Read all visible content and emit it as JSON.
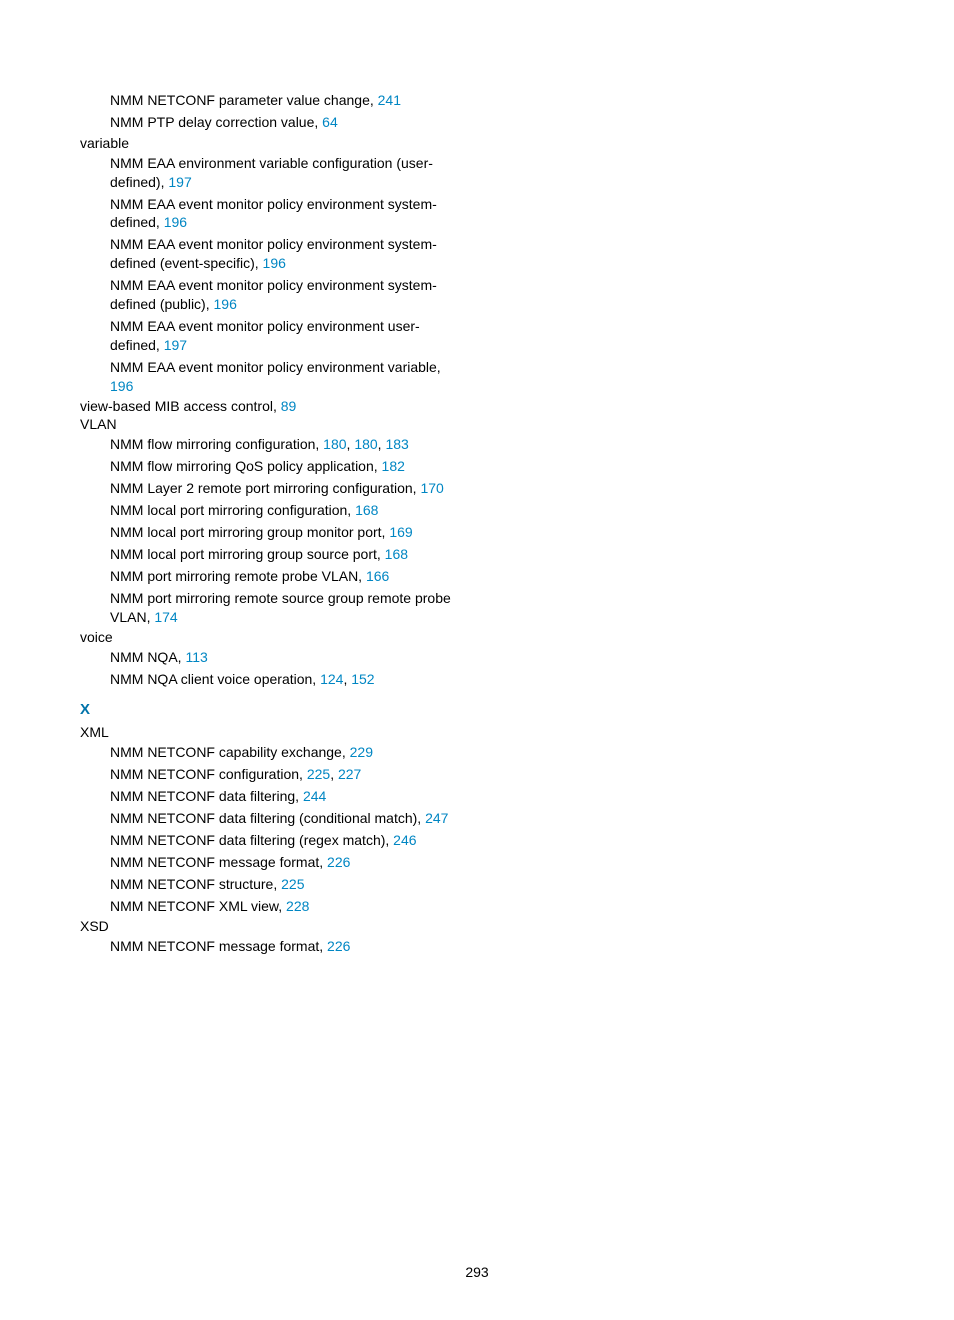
{
  "colors": {
    "text": "#000000",
    "link": "#0086c3",
    "letter": "#0073aa",
    "background": "#ffffff"
  },
  "typography": {
    "body_fontsize_pt": 10,
    "letter_fontsize_pt": 11,
    "font_family": "Arial"
  },
  "page_number": "293",
  "entries": [
    {
      "type": "sub",
      "text": "NMM NETCONF parameter value change, ",
      "pages": [
        "241"
      ]
    },
    {
      "type": "sub",
      "text": "NMM PTP delay correction value, ",
      "pages": [
        "64"
      ]
    },
    {
      "type": "heading",
      "text": "variable"
    },
    {
      "type": "sub",
      "text": "NMM EAA environment variable configuration (user-defined), ",
      "pages": [
        "197"
      ]
    },
    {
      "type": "sub",
      "text": "NMM EAA event monitor policy environment system-defined, ",
      "pages": [
        "196"
      ]
    },
    {
      "type": "sub",
      "text": "NMM EAA event monitor policy environment system-defined (event-specific), ",
      "pages": [
        "196"
      ]
    },
    {
      "type": "sub",
      "text": "NMM EAA event monitor policy environment system-defined (public), ",
      "pages": [
        "196"
      ]
    },
    {
      "type": "sub",
      "text": "NMM EAA event monitor policy environment user-defined, ",
      "pages": [
        "197"
      ]
    },
    {
      "type": "sub",
      "text": "NMM EAA event monitor policy environment variable, ",
      "pages": [
        "196"
      ]
    },
    {
      "type": "heading-inline",
      "text": "view-based MIB access control, ",
      "pages": [
        "89"
      ]
    },
    {
      "type": "heading",
      "text": "VLAN"
    },
    {
      "type": "sub",
      "text": "NMM flow mirroring configuration, ",
      "pages": [
        "180",
        "180",
        "183"
      ]
    },
    {
      "type": "sub",
      "text": "NMM flow mirroring QoS policy application, ",
      "pages": [
        "182"
      ]
    },
    {
      "type": "sub",
      "text": "NMM Layer 2 remote port mirroring configuration, ",
      "pages": [
        "170"
      ]
    },
    {
      "type": "sub",
      "text": "NMM local port mirroring configuration, ",
      "pages": [
        "168"
      ]
    },
    {
      "type": "sub",
      "text": "NMM local port mirroring group monitor port, ",
      "pages": [
        "169"
      ]
    },
    {
      "type": "sub",
      "text": "NMM local port mirroring group source port, ",
      "pages": [
        "168"
      ]
    },
    {
      "type": "sub",
      "text": "NMM port mirroring remote probe VLAN, ",
      "pages": [
        "166"
      ]
    },
    {
      "type": "sub",
      "text": "NMM port mirroring remote source group remote probe VLAN, ",
      "pages": [
        "174"
      ]
    },
    {
      "type": "heading",
      "text": "voice"
    },
    {
      "type": "sub",
      "text": "NMM NQA, ",
      "pages": [
        "113"
      ]
    },
    {
      "type": "sub",
      "text": "NMM NQA client voice operation, ",
      "pages": [
        "124",
        "152"
      ]
    },
    {
      "type": "letter",
      "text": "X"
    },
    {
      "type": "heading",
      "text": "XML"
    },
    {
      "type": "sub",
      "text": "NMM NETCONF capability exchange, ",
      "pages": [
        "229"
      ]
    },
    {
      "type": "sub",
      "text": "NMM NETCONF configuration, ",
      "pages": [
        "225",
        "227"
      ]
    },
    {
      "type": "sub",
      "text": "NMM NETCONF data filtering, ",
      "pages": [
        "244"
      ]
    },
    {
      "type": "sub",
      "text": "NMM NETCONF data filtering (conditional match), ",
      "pages": [
        "247"
      ]
    },
    {
      "type": "sub",
      "text": "NMM NETCONF data filtering (regex match), ",
      "pages": [
        "246"
      ]
    },
    {
      "type": "sub",
      "text": "NMM NETCONF message format, ",
      "pages": [
        "226"
      ]
    },
    {
      "type": "sub",
      "text": "NMM NETCONF structure, ",
      "pages": [
        "225"
      ]
    },
    {
      "type": "sub",
      "text": "NMM NETCONF XML view, ",
      "pages": [
        "228"
      ]
    },
    {
      "type": "heading",
      "text": "XSD"
    },
    {
      "type": "sub",
      "text": "NMM NETCONF message format, ",
      "pages": [
        "226"
      ]
    }
  ]
}
